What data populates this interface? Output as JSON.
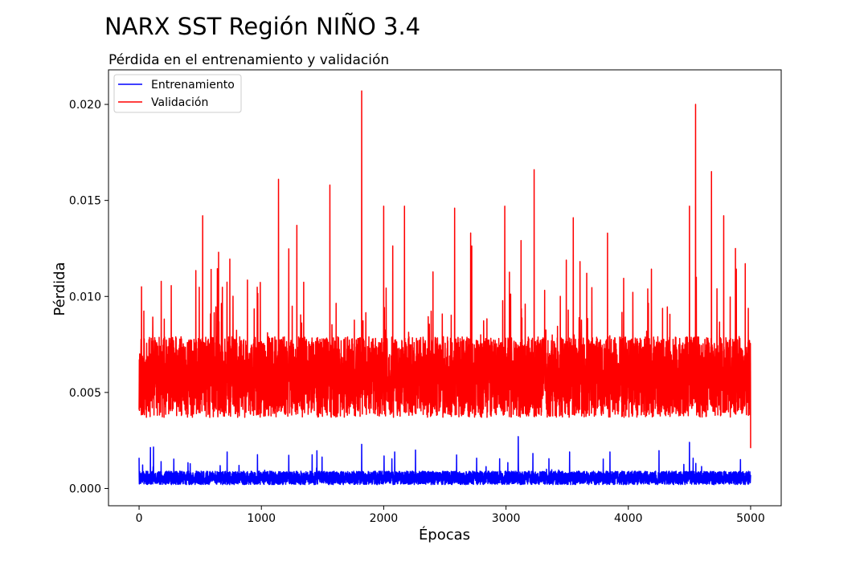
{
  "chart_data": {
    "type": "line",
    "suptitle": "NARX SST Región NIÑO 3.4",
    "title": "Pérdida en el entrenamiento y validación",
    "xlabel": "Épocas",
    "ylabel": "Pérdida",
    "xlim": [
      -250,
      5250
    ],
    "ylim": [
      -0.0009,
      0.0218
    ],
    "xticks": [
      0,
      1000,
      2000,
      3000,
      4000,
      5000
    ],
    "xtick_labels": [
      "0",
      "1000",
      "2000",
      "3000",
      "4000",
      "5000"
    ],
    "yticks": [
      0.0,
      0.005,
      0.01,
      0.015,
      0.02
    ],
    "ytick_labels": [
      "0.000",
      "0.005",
      "0.010",
      "0.015",
      "0.020"
    ],
    "grid": false,
    "legend_position": "top-left",
    "series": [
      {
        "name": "Entrenamiento",
        "color": "#0000ff",
        "generator": {
          "n_epochs": 5000,
          "seed": 7,
          "base": 0.00055,
          "noise": 0.00035,
          "spike_prob": 0.012,
          "spike_max": 0.0013,
          "floor": 0.0002,
          "peaks": [
            {
              "x": 0,
              "y": 0.0016
            },
            {
              "x": 180,
              "y": 0.0014
            },
            {
              "x": 720,
              "y": 0.0019
            },
            {
              "x": 1820,
              "y": 0.0023
            },
            {
              "x": 2090,
              "y": 0.0019
            },
            {
              "x": 2260,
              "y": 0.002
            },
            {
              "x": 3100,
              "y": 0.0027
            },
            {
              "x": 3520,
              "y": 0.0019
            },
            {
              "x": 3850,
              "y": 0.0019
            },
            {
              "x": 4500,
              "y": 0.0024
            }
          ]
        }
      },
      {
        "name": "Validación",
        "color": "#ff0000",
        "generator": {
          "n_epochs": 5000,
          "seed": 11,
          "base": 0.0058,
          "noise": 0.0021,
          "spike_prob": 0.03,
          "spike_max": 0.0055,
          "floor": 0.0022,
          "peaks": [
            {
              "x": 0,
              "y": 0.0041
            },
            {
              "x": 20,
              "y": 0.0105
            },
            {
              "x": 520,
              "y": 0.0142
            },
            {
              "x": 650,
              "y": 0.0123
            },
            {
              "x": 1140,
              "y": 0.0161
            },
            {
              "x": 1290,
              "y": 0.0137
            },
            {
              "x": 1560,
              "y": 0.0158
            },
            {
              "x": 1820,
              "y": 0.0207
            },
            {
              "x": 2000,
              "y": 0.0147
            },
            {
              "x": 2170,
              "y": 0.0147
            },
            {
              "x": 2580,
              "y": 0.0146
            },
            {
              "x": 2990,
              "y": 0.0147
            },
            {
              "x": 3230,
              "y": 0.0166
            },
            {
              "x": 3550,
              "y": 0.0141
            },
            {
              "x": 3830,
              "y": 0.0133
            },
            {
              "x": 4500,
              "y": 0.0147
            },
            {
              "x": 4550,
              "y": 0.02
            },
            {
              "x": 4680,
              "y": 0.0165
            },
            {
              "x": 4780,
              "y": 0.0142
            },
            {
              "x": 5000,
              "y": 0.0021
            }
          ]
        }
      }
    ]
  }
}
